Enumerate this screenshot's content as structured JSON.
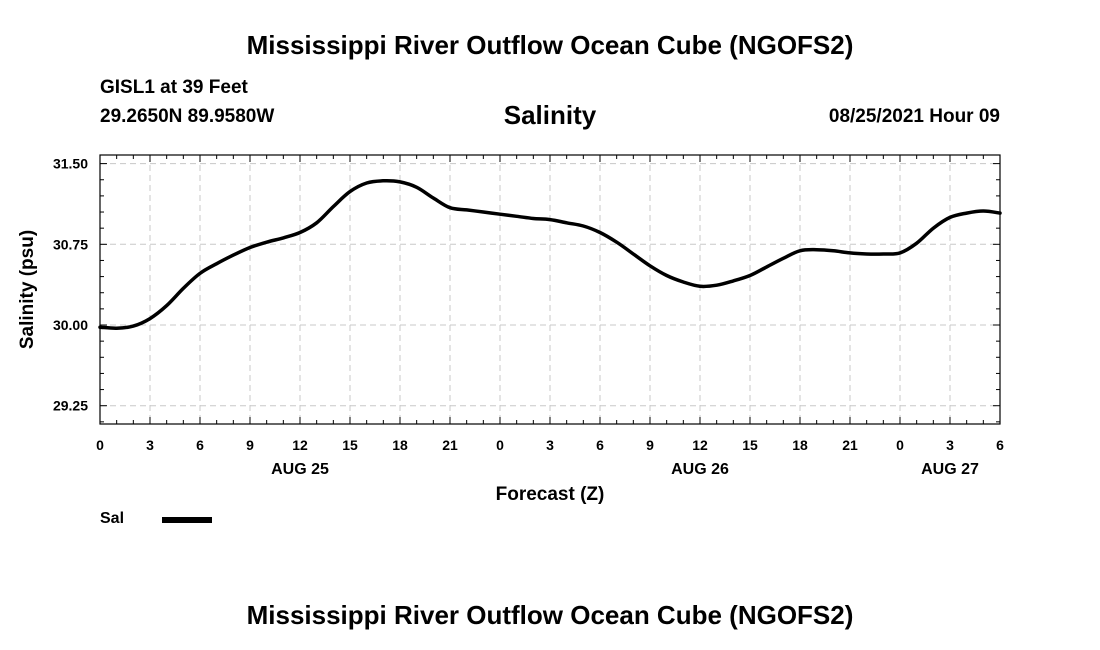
{
  "header": {
    "title": "Mississippi River Outflow Ocean Cube (NGOFS2)",
    "station": "GISL1 at 39 Feet",
    "coords": "29.2650N  89.9580W",
    "subtitle": "Salinity",
    "datetime": "08/25/2021 Hour 09"
  },
  "footer": {
    "title": "Mississippi River Outflow Ocean Cube (NGOFS2)"
  },
  "colors": {
    "line": "#000000",
    "grid": "#c8c8c8",
    "axis": "#000000"
  },
  "chart_data": {
    "type": "line",
    "title": "Salinity",
    "xlabel": "Forecast (Z)",
    "ylabel": "Salinity (psu)",
    "grid": true,
    "xlim": [
      0,
      54
    ],
    "ylim": [
      29.08,
      31.58
    ],
    "yticks": [
      29.25,
      30.0,
      30.75,
      31.5
    ],
    "ytick_labels": [
      "29.25",
      "30.00",
      "30.75",
      "31.50"
    ],
    "xticks": [
      0,
      3,
      6,
      9,
      12,
      15,
      18,
      21,
      24,
      27,
      30,
      33,
      36,
      39,
      42,
      45,
      48,
      51,
      54
    ],
    "xtick_labels": [
      "0",
      "3",
      "6",
      "9",
      "12",
      "15",
      "18",
      "21",
      "0",
      "3",
      "6",
      "9",
      "12",
      "15",
      "18",
      "21",
      "0",
      "3",
      "6"
    ],
    "date_labels": [
      {
        "x": 12,
        "label": "AUG 25"
      },
      {
        "x": 36,
        "label": "AUG 26"
      },
      {
        "x": 51,
        "label": "AUG 27"
      }
    ],
    "legend": {
      "position": "bottom-left",
      "entries": [
        "Sal"
      ]
    },
    "series": [
      {
        "name": "Sal",
        "x": [
          0,
          1,
          2,
          3,
          4,
          5,
          6,
          7,
          8,
          9,
          10,
          11,
          12,
          13,
          14,
          15,
          16,
          17,
          18,
          19,
          20,
          21,
          22,
          23,
          24,
          25,
          26,
          27,
          28,
          29,
          30,
          31,
          32,
          33,
          34,
          35,
          36,
          37,
          38,
          39,
          40,
          41,
          42,
          43,
          44,
          45,
          46,
          47,
          48,
          49,
          50,
          51,
          52,
          53,
          54
        ],
        "y": [
          29.98,
          29.97,
          29.99,
          30.06,
          30.18,
          30.34,
          30.48,
          30.57,
          30.65,
          30.72,
          30.77,
          30.81,
          30.86,
          30.95,
          31.1,
          31.24,
          31.32,
          31.34,
          31.33,
          31.28,
          31.18,
          31.09,
          31.07,
          31.05,
          31.03,
          31.01,
          30.99,
          30.98,
          30.95,
          30.92,
          30.86,
          30.77,
          30.66,
          30.55,
          30.46,
          30.4,
          30.36,
          30.37,
          30.41,
          30.46,
          30.54,
          30.62,
          30.69,
          30.7,
          30.69,
          30.67,
          30.66,
          30.66,
          30.67,
          30.76,
          30.9,
          31.0,
          31.04,
          31.06,
          31.04
        ]
      }
    ]
  }
}
